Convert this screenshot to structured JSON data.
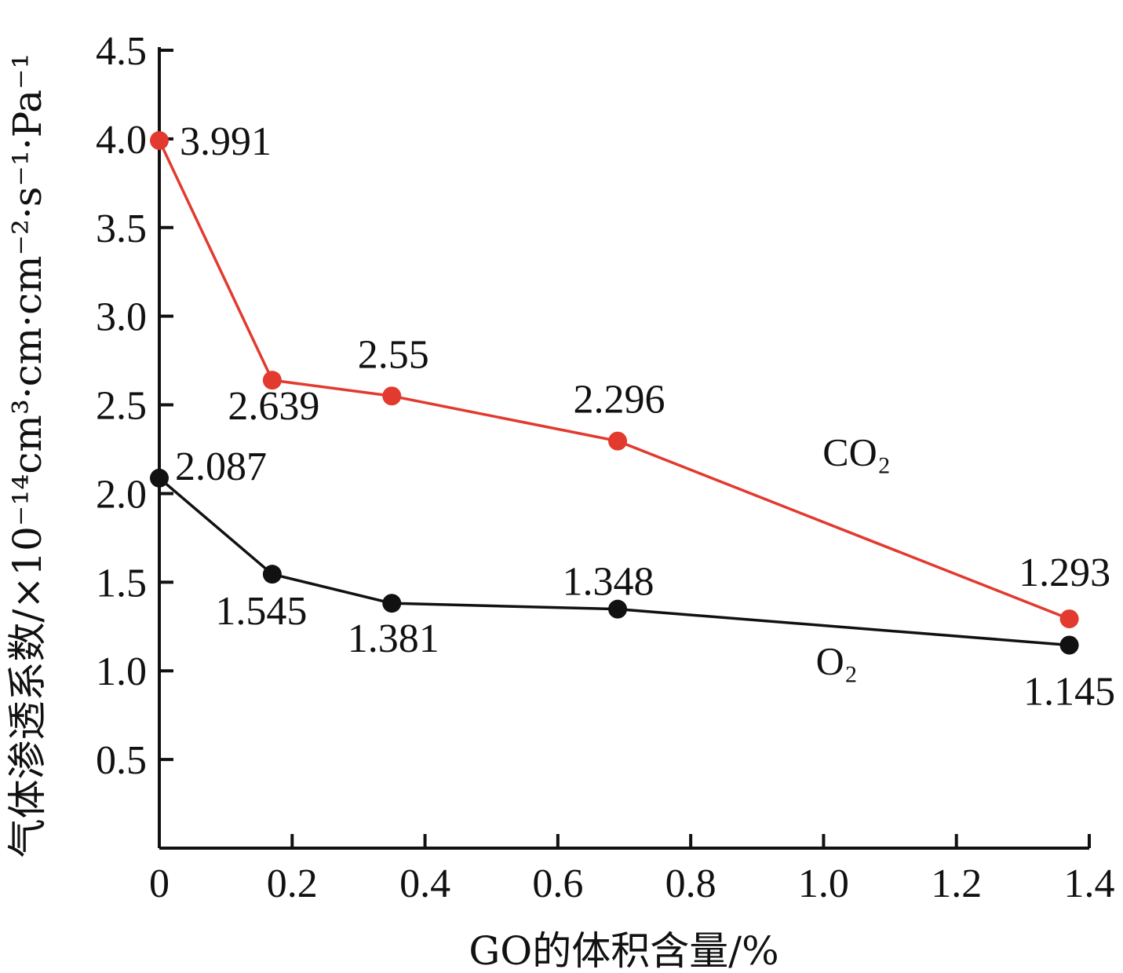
{
  "chart_data": {
    "type": "line",
    "xlabel": "GO的体积含量/%",
    "ylabel": "气体渗透系数/×10⁻¹⁴cm³·cm·cm⁻²·s⁻¹·Pa⁻¹",
    "xlim": [
      0,
      1.4
    ],
    "ylim": [
      0,
      4.5
    ],
    "x_ticks": [
      "0",
      "0.2",
      "0.4",
      "0.6",
      "0.8",
      "1.0",
      "1.2",
      "1.4"
    ],
    "y_ticks": [
      "0.5",
      "1.0",
      "1.5",
      "2.0",
      "2.5",
      "3.0",
      "3.5",
      "4.0",
      "4.5"
    ],
    "grid": false,
    "series": [
      {
        "name": "CO₂",
        "color": "#e23a2e",
        "x": [
          0,
          0.17,
          0.35,
          0.69,
          1.37
        ],
        "y": [
          3.991,
          2.639,
          2.55,
          2.296,
          1.293
        ],
        "labels": [
          "3.991",
          "2.639",
          "2.55",
          "2.296",
          "1.293"
        ]
      },
      {
        "name": "O₂",
        "color": "#111111",
        "x": [
          0,
          0.17,
          0.35,
          0.69,
          1.37
        ],
        "y": [
          2.087,
          1.545,
          1.381,
          1.348,
          1.145
        ],
        "labels": [
          "2.087",
          "1.545",
          "1.381",
          "1.348",
          "1.145"
        ]
      }
    ]
  }
}
